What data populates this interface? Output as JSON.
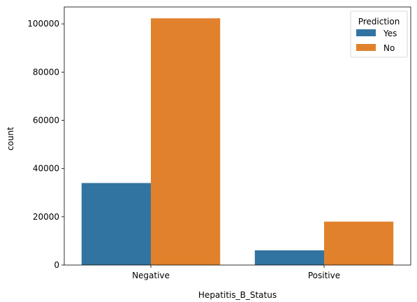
{
  "chart_data": {
    "type": "bar",
    "xlabel": "Hepatitis_B_Status",
    "ylabel": "count",
    "categories": [
      "Negative",
      "Positive"
    ],
    "series": [
      {
        "name": "Yes",
        "values": [
          34000,
          6100
        ],
        "color": "#3274a1"
      },
      {
        "name": "No",
        "values": [
          102300,
          18000
        ],
        "color": "#e1812c"
      }
    ],
    "ylim": [
      0,
      107000
    ],
    "yticks": [
      0,
      20000,
      40000,
      60000,
      80000,
      100000
    ],
    "legend": {
      "title": "Prediction",
      "placement": "top-right"
    },
    "grid": false
  }
}
